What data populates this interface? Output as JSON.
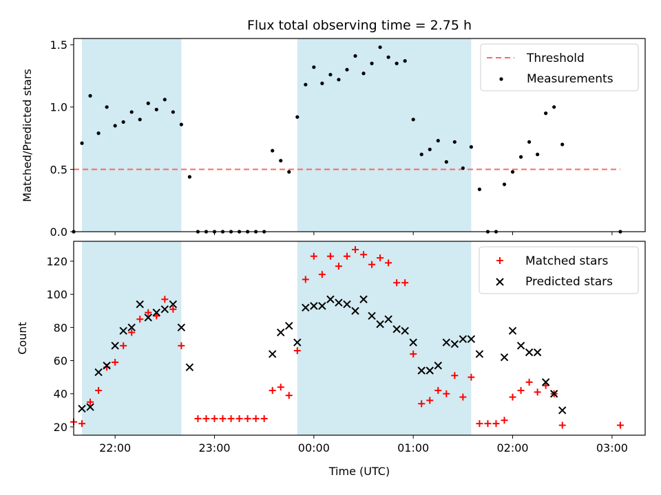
{
  "chart_data": {
    "type": "scatter",
    "title": "Flux total observing time = 2.75 h",
    "xlabel": "Time (UTC)",
    "x_ticks": [
      "22:00",
      "23:00",
      "00:00",
      "01:00",
      "02:00",
      "03:00"
    ],
    "x_range": [
      "21:35",
      "03:20"
    ],
    "colors": {
      "shade": "#add8e6",
      "threshold": "#ff6666",
      "measurements": "#000000",
      "matched": "#ff0000",
      "predicted": "#000000"
    },
    "shaded_intervals": [
      [
        "21:40",
        "22:40"
      ],
      [
        "23:50",
        "01:35"
      ]
    ],
    "panels": [
      {
        "ylabel": "Matched/Predicted stars",
        "ylim": [
          0,
          1.55
        ],
        "y_ticks": [
          "0.0",
          "0.5",
          "1.0",
          "1.5"
        ],
        "legend_position": "top-right",
        "threshold": {
          "name": "Threshold",
          "value": 0.5,
          "x_start": "21:35",
          "x_end": "03:05"
        },
        "series": [
          {
            "name": "Measurements",
            "points": [
              [
                "21:35",
                0.0
              ],
              [
                "21:40",
                0.71
              ],
              [
                "21:45",
                1.09
              ],
              [
                "21:50",
                0.79
              ],
              [
                "21:55",
                1.0
              ],
              [
                "22:00",
                0.85
              ],
              [
                "22:05",
                0.88
              ],
              [
                "22:10",
                0.96
              ],
              [
                "22:15",
                0.9
              ],
              [
                "22:20",
                1.03
              ],
              [
                "22:25",
                0.98
              ],
              [
                "22:30",
                1.06
              ],
              [
                "22:35",
                0.96
              ],
              [
                "22:40",
                0.86
              ],
              [
                "22:45",
                0.44
              ],
              [
                "22:50",
                0.0
              ],
              [
                "22:55",
                0.0
              ],
              [
                "23:00",
                0.0
              ],
              [
                "23:05",
                0.0
              ],
              [
                "23:10",
                0.0
              ],
              [
                "23:15",
                0.0
              ],
              [
                "23:20",
                0.0
              ],
              [
                "23:25",
                0.0
              ],
              [
                "23:30",
                0.0
              ],
              [
                "23:35",
                0.65
              ],
              [
                "23:40",
                0.57
              ],
              [
                "23:45",
                0.48
              ],
              [
                "23:50",
                0.92
              ],
              [
                "23:55",
                1.18
              ],
              [
                "00:00",
                1.32
              ],
              [
                "00:05",
                1.19
              ],
              [
                "00:10",
                1.26
              ],
              [
                "00:15",
                1.22
              ],
              [
                "00:20",
                1.3
              ],
              [
                "00:25",
                1.41
              ],
              [
                "00:30",
                1.27
              ],
              [
                "00:35",
                1.35
              ],
              [
                "00:40",
                1.48
              ],
              [
                "00:45",
                1.4
              ],
              [
                "00:50",
                1.35
              ],
              [
                "00:55",
                1.37
              ],
              [
                "01:00",
                0.9
              ],
              [
                "01:05",
                0.62
              ],
              [
                "01:10",
                0.66
              ],
              [
                "01:15",
                0.73
              ],
              [
                "01:20",
                0.56
              ],
              [
                "01:25",
                0.72
              ],
              [
                "01:30",
                0.51
              ],
              [
                "01:35",
                0.68
              ],
              [
                "01:40",
                0.34
              ],
              [
                "01:45",
                0.0
              ],
              [
                "01:50",
                0.0
              ],
              [
                "01:55",
                0.38
              ],
              [
                "02:00",
                0.48
              ],
              [
                "02:05",
                0.6
              ],
              [
                "02:10",
                0.72
              ],
              [
                "02:15",
                0.62
              ],
              [
                "02:20",
                0.95
              ],
              [
                "02:25",
                1.0
              ],
              [
                "02:30",
                0.7
              ],
              [
                "03:05",
                0.0
              ]
            ]
          }
        ]
      },
      {
        "ylabel": "Count",
        "ylim": [
          15,
          132
        ],
        "y_ticks": [
          "20",
          "40",
          "60",
          "80",
          "100",
          "120"
        ],
        "legend_position": "top-right",
        "series": [
          {
            "name": "Matched stars",
            "marker": "plus",
            "points": [
              [
                "21:35",
                23
              ],
              [
                "21:40",
                22
              ],
              [
                "21:45",
                35
              ],
              [
                "21:50",
                42
              ],
              [
                "21:55",
                56
              ],
              [
                "22:00",
                59
              ],
              [
                "22:05",
                69
              ],
              [
                "22:10",
                77
              ],
              [
                "22:15",
                85
              ],
              [
                "22:20",
                89
              ],
              [
                "22:25",
                87
              ],
              [
                "22:30",
                97
              ],
              [
                "22:35",
                91
              ],
              [
                "22:40",
                69
              ],
              [
                "22:50",
                25
              ],
              [
                "22:55",
                25
              ],
              [
                "23:00",
                25
              ],
              [
                "23:05",
                25
              ],
              [
                "23:10",
                25
              ],
              [
                "23:15",
                25
              ],
              [
                "23:20",
                25
              ],
              [
                "23:25",
                25
              ],
              [
                "23:30",
                25
              ],
              [
                "23:35",
                42
              ],
              [
                "23:40",
                44
              ],
              [
                "23:45",
                39
              ],
              [
                "23:50",
                66
              ],
              [
                "23:55",
                109
              ],
              [
                "00:00",
                123
              ],
              [
                "00:05",
                112
              ],
              [
                "00:10",
                123
              ],
              [
                "00:15",
                117
              ],
              [
                "00:20",
                123
              ],
              [
                "00:25",
                127
              ],
              [
                "00:30",
                124
              ],
              [
                "00:35",
                118
              ],
              [
                "00:40",
                122
              ],
              [
                "00:45",
                119
              ],
              [
                "00:50",
                107
              ],
              [
                "00:55",
                107
              ],
              [
                "01:00",
                64
              ],
              [
                "01:05",
                34
              ],
              [
                "01:10",
                36
              ],
              [
                "01:15",
                42
              ],
              [
                "01:20",
                40
              ],
              [
                "01:25",
                51
              ],
              [
                "01:30",
                38
              ],
              [
                "01:35",
                50
              ],
              [
                "01:40",
                22
              ],
              [
                "01:45",
                22
              ],
              [
                "01:50",
                22
              ],
              [
                "01:55",
                24
              ],
              [
                "02:00",
                38
              ],
              [
                "02:05",
                42
              ],
              [
                "02:10",
                47
              ],
              [
                "02:15",
                41
              ],
              [
                "02:20",
                45
              ],
              [
                "02:25",
                40
              ],
              [
                "02:30",
                21
              ],
              [
                "03:05",
                21
              ]
            ]
          },
          {
            "name": "Predicted stars",
            "marker": "x",
            "points": [
              [
                "21:40",
                31
              ],
              [
                "21:45",
                32
              ],
              [
                "21:50",
                53
              ],
              [
                "21:55",
                57
              ],
              [
                "22:00",
                69
              ],
              [
                "22:05",
                78
              ],
              [
                "22:10",
                80
              ],
              [
                "22:15",
                94
              ],
              [
                "22:20",
                86
              ],
              [
                "22:25",
                89
              ],
              [
                "22:30",
                91
              ],
              [
                "22:35",
                94
              ],
              [
                "22:40",
                80
              ],
              [
                "22:45",
                56
              ],
              [
                "23:35",
                64
              ],
              [
                "23:40",
                77
              ],
              [
                "23:45",
                81
              ],
              [
                "23:50",
                71
              ],
              [
                "23:55",
                92
              ],
              [
                "00:00",
                93
              ],
              [
                "00:05",
                93
              ],
              [
                "00:10",
                97
              ],
              [
                "00:15",
                95
              ],
              [
                "00:20",
                94
              ],
              [
                "00:25",
                90
              ],
              [
                "00:30",
                97
              ],
              [
                "00:35",
                87
              ],
              [
                "00:40",
                82
              ],
              [
                "00:45",
                85
              ],
              [
                "00:50",
                79
              ],
              [
                "00:55",
                78
              ],
              [
                "01:00",
                71
              ],
              [
                "01:05",
                54
              ],
              [
                "01:10",
                54
              ],
              [
                "01:15",
                57
              ],
              [
                "01:20",
                71
              ],
              [
                "01:25",
                70
              ],
              [
                "01:30",
                73
              ],
              [
                "01:35",
                73
              ],
              [
                "01:40",
                64
              ],
              [
                "01:55",
                62
              ],
              [
                "02:00",
                78
              ],
              [
                "02:05",
                69
              ],
              [
                "02:10",
                65
              ],
              [
                "02:15",
                65
              ],
              [
                "02:20",
                47
              ],
              [
                "02:25",
                40
              ],
              [
                "02:30",
                30
              ]
            ]
          }
        ]
      }
    ]
  }
}
